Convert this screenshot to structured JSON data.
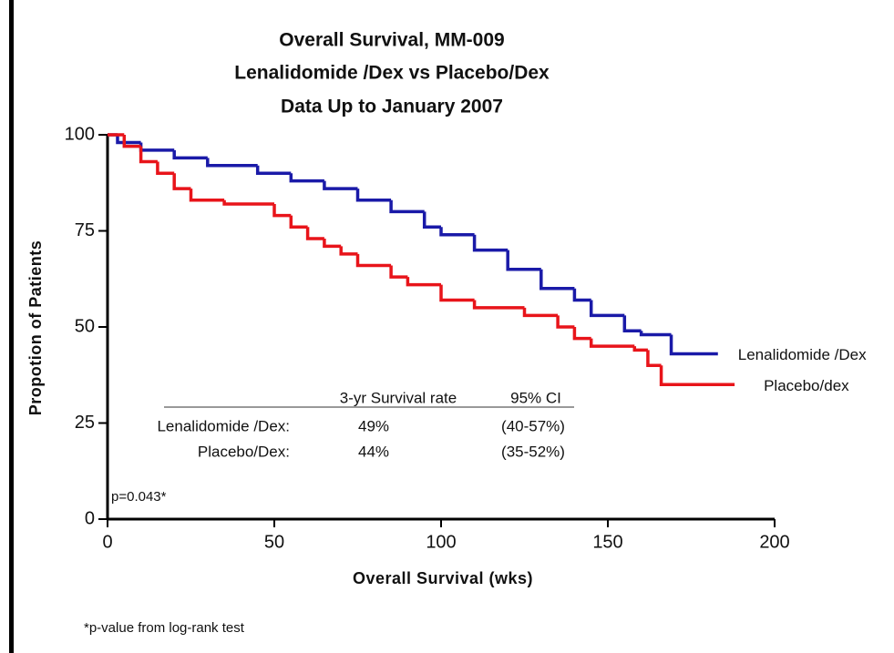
{
  "chart_data": {
    "type": "step",
    "title": "Overall Survival, MM-009",
    "subtitle": "Lenalidomide /Dex vs Placebo/Dex",
    "subtitle2": "Data Up to January 2007",
    "x_label": "Overall Survival (wks)",
    "y_label": "Propotion of Patients",
    "xlim": [
      0,
      200
    ],
    "xticks": [
      0,
      50,
      100,
      150,
      200
    ],
    "ylim": [
      0,
      100
    ],
    "yticks": [
      0,
      25,
      50,
      75,
      100
    ],
    "series": [
      {
        "name": "Lenalidomide /Dex",
        "color": "#1a1aa8",
        "x": [
          0,
          3,
          10,
          20,
          30,
          45,
          55,
          65,
          75,
          85,
          95,
          100,
          110,
          120,
          130,
          140,
          145,
          155,
          160,
          169,
          183
        ],
        "values": [
          100,
          98,
          96,
          94,
          92,
          90,
          88,
          86,
          83,
          80,
          76,
          74,
          70,
          65,
          60,
          57,
          53,
          49,
          48,
          43,
          43
        ]
      },
      {
        "name": "Placebo/dex",
        "color": "#e8141a",
        "x": [
          0,
          5,
          10,
          15,
          20,
          25,
          35,
          50,
          55,
          60,
          65,
          70,
          75,
          85,
          90,
          100,
          110,
          125,
          135,
          140,
          145,
          158,
          162,
          166,
          188
        ],
        "values": [
          100,
          97,
          93,
          90,
          86,
          83,
          82,
          79,
          76,
          73,
          71,
          69,
          66,
          63,
          61,
          57,
          55,
          53,
          50,
          47,
          45,
          44,
          40,
          35,
          35
        ]
      }
    ],
    "table": {
      "header": [
        "3-yr Survival rate",
        "95% CI"
      ],
      "rows": [
        [
          "Lenalidomide /Dex:",
          "49%",
          "(40-57%)"
        ],
        [
          "Placebo/Dex:",
          "44%",
          "(35-52%)"
        ]
      ]
    },
    "p_value_note": "p=0.043*",
    "footnote": "*p-value from log-rank test"
  }
}
